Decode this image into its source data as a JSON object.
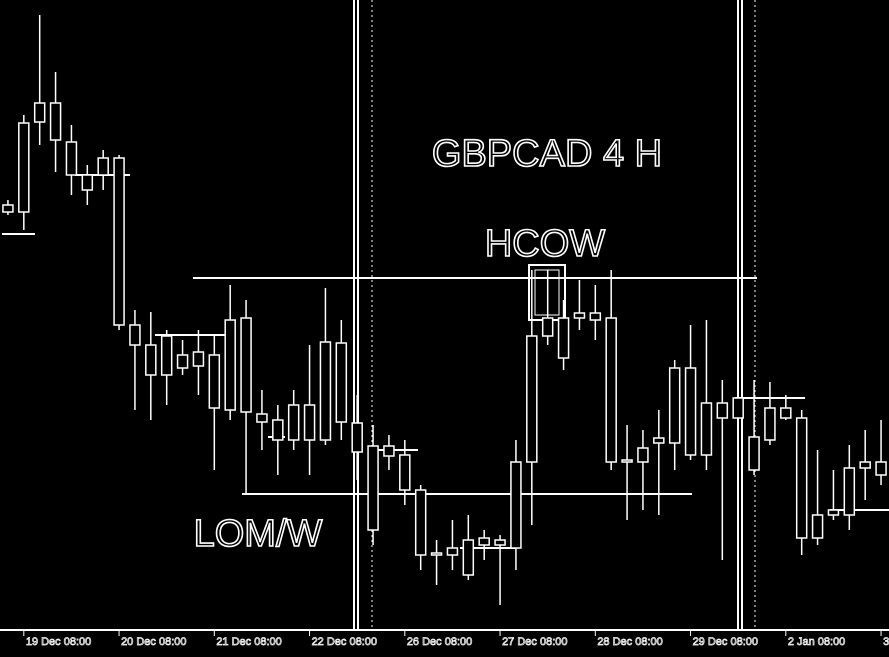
{
  "chart_data": {
    "type": "candlestick",
    "title": "GBPCAD 4 H",
    "annotations": [
      "HCOW",
      "LOM/W"
    ],
    "xlim": [
      -0.5,
      55.5
    ],
    "ylim": [
      0,
      630
    ],
    "xticks": [
      {
        "value": 1,
        "label": "19 Dec 08:00"
      },
      {
        "value": 7,
        "label": "20 Dec 08:00"
      },
      {
        "value": 13,
        "label": "21 Dec 08:00"
      },
      {
        "value": 19,
        "label": "22 Dec 08:00"
      },
      {
        "value": 25,
        "label": "26 Dec 08:00"
      },
      {
        "value": 31,
        "label": "27 Dec 08:00"
      },
      {
        "value": 37,
        "label": "28 Dec 08:00"
      },
      {
        "value": 43,
        "label": "29 Dec 08:00"
      },
      {
        "value": 49,
        "label": "2 Jan 08:00"
      },
      {
        "value": 55,
        "label": "3"
      }
    ],
    "color": "#ffffff",
    "open": [
      425,
      507,
      527,
      527,
      488,
      455,
      472,
      472,
      305,
      285,
      294,
      275,
      278,
      275,
      310,
      312,
      216,
      210,
      225,
      225,
      288,
      287,
      207,
      184,
      184,
      175,
      140,
      77,
      82,
      90,
      92,
      90,
      168,
      294,
      312,
      312,
      317,
      317,
      312,
      170,
      182,
      192,
      262,
      262,
      227,
      227,
      232,
      193,
      222,
      222,
      212,
      115,
      120,
      162,
      168,
      168
    ],
    "high": [
      430,
      515,
      615,
      558,
      505,
      465,
      480,
      475,
      320,
      318,
      300,
      290,
      300,
      295,
      345,
      330,
      240,
      225,
      240,
      285,
      342,
      310,
      235,
      205,
      195,
      190,
      145,
      90,
      110,
      115,
      100,
      95,
      190,
      360,
      360,
      330,
      350,
      345,
      360,
      205,
      200,
      220,
      270,
      305,
      310,
      250,
      255,
      250,
      248,
      235,
      220,
      180,
      160,
      185,
      200,
      210
    ],
    "low": [
      415,
      400,
      485,
      458,
      435,
      425,
      440,
      300,
      220,
      210,
      225,
      255,
      235,
      160,
      210,
      135,
      180,
      155,
      180,
      155,
      185,
      190,
      150,
      85,
      160,
      125,
      60,
      45,
      60,
      50,
      70,
      25,
      60,
      105,
      285,
      260,
      300,
      290,
      160,
      110,
      120,
      115,
      160,
      170,
      160,
      70,
      190,
      155,
      185,
      210,
      75,
      85,
      110,
      100,
      130,
      145
    ],
    "close": [
      418,
      418,
      508,
      490,
      455,
      440,
      455,
      305,
      285,
      255,
      255,
      262,
      264,
      222,
      220,
      218,
      208,
      190,
      190,
      190,
      190,
      208,
      178,
      100,
      174,
      140,
      75,
      75,
      75,
      55,
      85,
      85,
      82,
      168,
      294,
      272,
      312,
      310,
      168,
      168,
      168,
      187,
      187,
      175,
      175,
      212,
      212,
      160,
      190,
      212,
      92,
      92,
      115,
      115,
      162,
      155
    ]
  }
}
